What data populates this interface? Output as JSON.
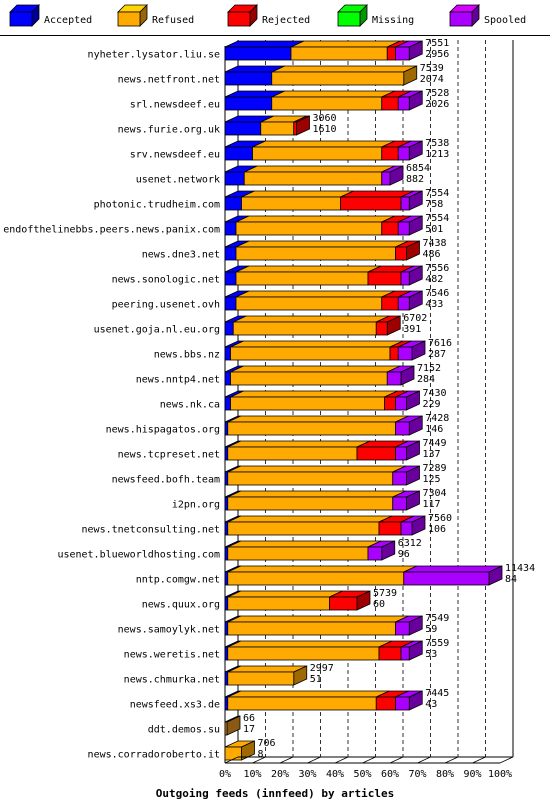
{
  "chart_data": {
    "type": "bar",
    "stacked": true,
    "orientation": "horizontal",
    "title": "Outgoing feeds (innfeed) by articles",
    "legend": [
      {
        "key": "accepted",
        "label": "Accepted",
        "color": "#0000ff"
      },
      {
        "key": "refused",
        "label": "Refused",
        "color": "#ffaa00"
      },
      {
        "key": "rejected",
        "label": "Rejected",
        "color": "#ff0000"
      },
      {
        "key": "missing",
        "label": "Missing",
        "color": "#00ff00"
      },
      {
        "key": "spooled",
        "label": "Spooled",
        "color": "#aa00ff"
      }
    ],
    "legend_position": "top",
    "x_ticks": [
      "0%",
      "10%",
      "20%",
      "30%",
      "40%",
      "50%",
      "60%",
      "70%",
      "80%",
      "90%",
      "100%"
    ],
    "xlim": [
      0,
      100
    ],
    "grid": true,
    "rows": [
      {
        "name": "nyheter.lysator.liu.se",
        "offered": "7551",
        "accepted_count": "2956",
        "accepted": 24,
        "refused": 35,
        "rejected": 3,
        "missing": 0,
        "spooled": 5
      },
      {
        "name": "news.netfront.net",
        "offered": "7539",
        "accepted_count": "2074",
        "accepted": 17,
        "refused": 48,
        "rejected": 0,
        "missing": 0,
        "spooled": 0
      },
      {
        "name": "srl.newsdeef.eu",
        "offered": "7528",
        "accepted_count": "2026",
        "accepted": 17,
        "refused": 40,
        "rejected": 6,
        "missing": 0,
        "spooled": 4
      },
      {
        "name": "news.furie.org.uk",
        "offered": "3060",
        "accepted_count": "1610",
        "accepted": 13,
        "refused": 12,
        "rejected": 1,
        "missing": 0,
        "spooled": 0
      },
      {
        "name": "srv.newsdeef.eu",
        "offered": "7538",
        "accepted_count": "1213",
        "accepted": 10,
        "refused": 47,
        "rejected": 6,
        "missing": 0,
        "spooled": 4
      },
      {
        "name": "usenet.network",
        "offered": "6854",
        "accepted_count": "882",
        "accepted": 7,
        "refused": 50,
        "rejected": 0,
        "missing": 0,
        "spooled": 3
      },
      {
        "name": "photonic.trudheim.com",
        "offered": "7554",
        "accepted_count": "758",
        "accepted": 6,
        "refused": 36,
        "rejected": 22,
        "missing": 0,
        "spooled": 3
      },
      {
        "name": "endofthelinebbs.peers.news.panix.com",
        "offered": "7554",
        "accepted_count": "501",
        "accepted": 4,
        "refused": 53,
        "rejected": 6,
        "missing": 0,
        "spooled": 4
      },
      {
        "name": "news.dne3.net",
        "offered": "7438",
        "accepted_count": "486",
        "accepted": 4,
        "refused": 58,
        "rejected": 4,
        "missing": 0,
        "spooled": 0
      },
      {
        "name": "news.sonologic.net",
        "offered": "7556",
        "accepted_count": "482",
        "accepted": 4,
        "refused": 48,
        "rejected": 12,
        "missing": 0,
        "spooled": 3
      },
      {
        "name": "peering.usenet.ovh",
        "offered": "7546",
        "accepted_count": "433",
        "accepted": 4,
        "refused": 53,
        "rejected": 6,
        "missing": 0,
        "spooled": 4
      },
      {
        "name": "usenet.goja.nl.eu.org",
        "offered": "6702",
        "accepted_count": "391",
        "accepted": 3,
        "refused": 52,
        "rejected": 4,
        "missing": 0,
        "spooled": 0
      },
      {
        "name": "news.bbs.nz",
        "offered": "7616",
        "accepted_count": "287",
        "accepted": 2,
        "refused": 58,
        "rejected": 3,
        "missing": 0,
        "spooled": 5
      },
      {
        "name": "news.nntp4.net",
        "offered": "7152",
        "accepted_count": "284",
        "accepted": 2,
        "refused": 57,
        "rejected": 0,
        "missing": 0,
        "spooled": 5
      },
      {
        "name": "news.nk.ca",
        "offered": "7430",
        "accepted_count": "229",
        "accepted": 2,
        "refused": 56,
        "rejected": 4,
        "missing": 0,
        "spooled": 4
      },
      {
        "name": "news.hispagatos.org",
        "offered": "7428",
        "accepted_count": "146",
        "accepted": 1,
        "refused": 61,
        "rejected": 0,
        "missing": 0,
        "spooled": 5
      },
      {
        "name": "news.tcpreset.net",
        "offered": "7449",
        "accepted_count": "137",
        "accepted": 1,
        "refused": 47,
        "rejected": 14,
        "missing": 0,
        "spooled": 4
      },
      {
        "name": "newsfeed.bofh.team",
        "offered": "7289",
        "accepted_count": "125",
        "accepted": 1,
        "refused": 60,
        "rejected": 0,
        "missing": 0,
        "spooled": 5
      },
      {
        "name": "i2pn.org",
        "offered": "7304",
        "accepted_count": "117",
        "accepted": 1,
        "refused": 60,
        "rejected": 0,
        "missing": 0,
        "spooled": 5
      },
      {
        "name": "news.tnetconsulting.net",
        "offered": "7560",
        "accepted_count": "106",
        "accepted": 1,
        "refused": 55,
        "rejected": 8,
        "missing": 0,
        "spooled": 4
      },
      {
        "name": "usenet.blueworldhosting.com",
        "offered": "6312",
        "accepted_count": "96",
        "accepted": 1,
        "refused": 51,
        "rejected": 0,
        "missing": 0,
        "spooled": 5
      },
      {
        "name": "nntp.comgw.net",
        "offered": "11434",
        "accepted_count": "84",
        "accepted": 1,
        "refused": 64,
        "rejected": 0,
        "missing": 0,
        "spooled": 31
      },
      {
        "name": "news.quux.org",
        "offered": "5739",
        "accepted_count": "60",
        "accepted": 1,
        "refused": 37,
        "rejected": 10,
        "missing": 0,
        "spooled": 0
      },
      {
        "name": "news.samoylyk.net",
        "offered": "7549",
        "accepted_count": "59",
        "accepted": 1,
        "refused": 61,
        "rejected": 0,
        "missing": 0,
        "spooled": 5
      },
      {
        "name": "news.weretis.net",
        "offered": "7559",
        "accepted_count": "53",
        "accepted": 1,
        "refused": 55,
        "rejected": 8,
        "missing": 0,
        "spooled": 3
      },
      {
        "name": "news.chmurka.net",
        "offered": "2997",
        "accepted_count": "51",
        "accepted": 1,
        "refused": 24,
        "rejected": 0,
        "missing": 0,
        "spooled": 0
      },
      {
        "name": "newsfeed.xs3.de",
        "offered": "7445",
        "accepted_count": "43",
        "accepted": 1,
        "refused": 54,
        "rejected": 7,
        "missing": 0,
        "spooled": 5
      },
      {
        "name": "ddt.demos.su",
        "offered": "66",
        "accepted_count": "17",
        "accepted": 0,
        "refused": 0,
        "rejected": 0,
        "missing": 0,
        "spooled": 0
      },
      {
        "name": "news.corradoroberto.it",
        "offered": "706",
        "accepted_count": "8",
        "accepted": 0,
        "refused": 6,
        "rejected": 0,
        "missing": 0,
        "spooled": 0
      }
    ]
  }
}
